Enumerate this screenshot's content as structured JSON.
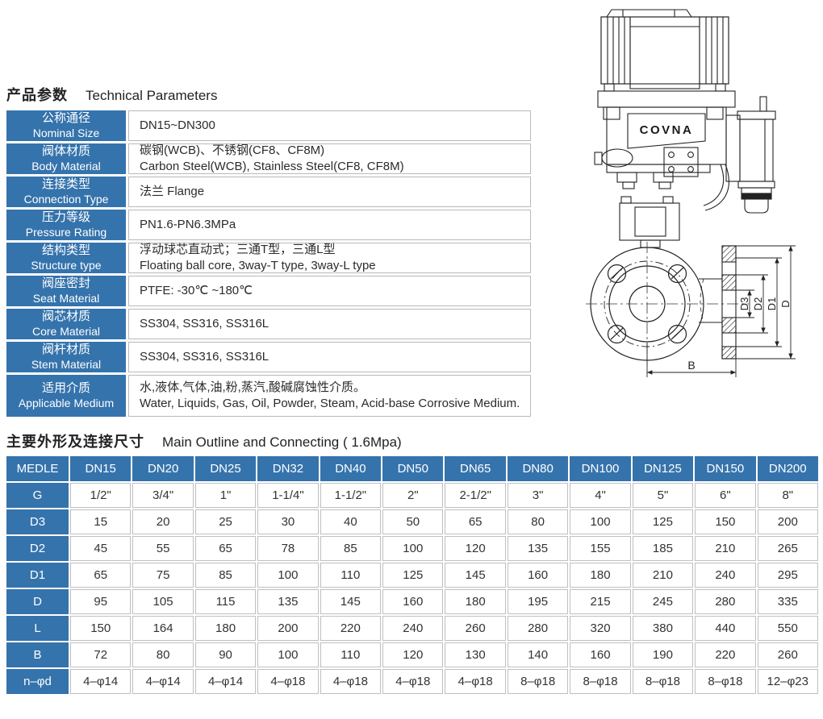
{
  "section1": {
    "title_zh": "产品参数",
    "title_en": "Technical Parameters"
  },
  "section2": {
    "title_zh": "主要外形及连接尺寸",
    "title_en": "Main Outline and Connecting ( 1.6Mpa)"
  },
  "colors": {
    "header_blue": "#3573ac",
    "cell_border_gray": "#b9b9b9",
    "text_dark": "#222222",
    "drawing_line": "#222222"
  },
  "parameters_table": {
    "rows": [
      {
        "label_zh": "公称通径",
        "label_en": "Nominal Size",
        "value_lines": [
          "DN15~DN300"
        ]
      },
      {
        "label_zh": "阀体材质",
        "label_en": "Body Material",
        "value_lines": [
          "碳钢(WCB)、不锈钢(CF8、CF8M)",
          "Carbon Steel(WCB), Stainless Steel(CF8, CF8M)"
        ]
      },
      {
        "label_zh": "连接类型",
        "label_en": "Connection Type",
        "value_lines": [
          "法兰  Flange"
        ]
      },
      {
        "label_zh": "压力等级",
        "label_en": "Pressure Rating",
        "value_lines": [
          "PN1.6-PN6.3MPa"
        ]
      },
      {
        "label_zh": "结构类型",
        "label_en": "Structure type",
        "value_lines": [
          "浮动球芯直动式；三通T型，三通L型",
          "Floating ball core, 3way-T type, 3way-L type"
        ]
      },
      {
        "label_zh": "阀座密封",
        "label_en": "Seat Material",
        "value_lines": [
          "PTFE: -30℃ ~180℃"
        ]
      },
      {
        "label_zh": "阀芯材质",
        "label_en": "Core Material",
        "value_lines": [
          "SS304, SS316, SS316L"
        ]
      },
      {
        "label_zh": "阀杆材质",
        "label_en": "Stem Material",
        "value_lines": [
          "SS304, SS316, SS316L"
        ]
      },
      {
        "label_zh": "适用介质",
        "label_en": "Applicable Medium",
        "value_lines": [
          "水,液体,气体,油,粉,蒸汽,酸碱腐蚀性介质。",
          "Water, Liquids, Gas, Oil, Powder, Steam, Acid-base Corrosive Medium."
        ]
      }
    ]
  },
  "dimensions_table": {
    "corner": "MEDLE",
    "columns": [
      "DN15",
      "DN20",
      "DN25",
      "DN32",
      "DN40",
      "DN50",
      "DN65",
      "DN80",
      "DN100",
      "DN125",
      "DN150",
      "DN200"
    ],
    "rows": [
      {
        "label": "G",
        "values": [
          "1/2\"",
          "3/4\"",
          "1\"",
          "1-1/4\"",
          "1-1/2\"",
          "2\"",
          "2-1/2\"",
          "3\"",
          "4\"",
          "5\"",
          "6\"",
          "8\""
        ]
      },
      {
        "label": "D3",
        "values": [
          "15",
          "20",
          "25",
          "30",
          "40",
          "50",
          "65",
          "80",
          "100",
          "125",
          "150",
          "200"
        ]
      },
      {
        "label": "D2",
        "values": [
          "45",
          "55",
          "65",
          "78",
          "85",
          "100",
          "120",
          "135",
          "155",
          "185",
          "210",
          "265"
        ]
      },
      {
        "label": "D1",
        "values": [
          "65",
          "75",
          "85",
          "100",
          "110",
          "125",
          "145",
          "160",
          "180",
          "210",
          "240",
          "295"
        ]
      },
      {
        "label": "D",
        "values": [
          "95",
          "105",
          "115",
          "135",
          "145",
          "160",
          "180",
          "195",
          "215",
          "245",
          "280",
          "335"
        ]
      },
      {
        "label": "L",
        "values": [
          "150",
          "164",
          "180",
          "200",
          "220",
          "240",
          "260",
          "280",
          "320",
          "380",
          "440",
          "550"
        ]
      },
      {
        "label": "B",
        "values": [
          "72",
          "80",
          "90",
          "100",
          "110",
          "120",
          "130",
          "140",
          "160",
          "190",
          "220",
          "260"
        ]
      },
      {
        "label": "n–φd",
        "values": [
          "4–φ14",
          "4–φ14",
          "4–φ14",
          "4–φ18",
          "4–φ18",
          "4–φ18",
          "4–φ18",
          "8–φ18",
          "8–φ18",
          "8–φ18",
          "8–φ18",
          "12–φ23"
        ]
      }
    ]
  },
  "drawing": {
    "brand": "COVNA",
    "labels": {
      "d3": "D3",
      "d2": "D2",
      "d1": "D1",
      "d": "D",
      "b": "B"
    }
  }
}
